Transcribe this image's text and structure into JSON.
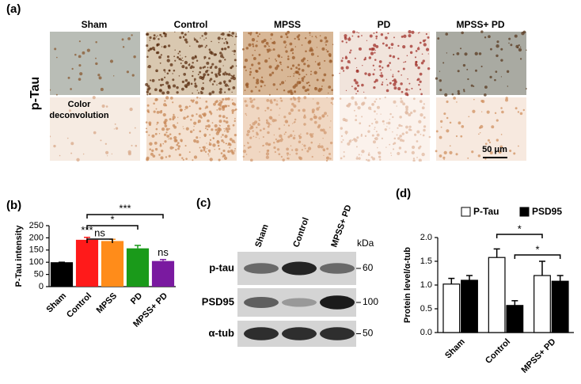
{
  "panel_a": {
    "label": "(a)",
    "columns": [
      "Sham",
      "Control",
      "MPSS",
      "PD",
      "MPSS+ PD"
    ],
    "row_label": "p-Tau",
    "overlay_lines": [
      "Color",
      "deconvolution"
    ],
    "scale_bar": "50 μm"
  },
  "panel_c": {
    "label": "(c)",
    "lanes": [
      "Sham",
      "Control",
      "MPSS+ PD"
    ],
    "unit": "kDa",
    "rows": [
      {
        "name": "p-tau",
        "kda": 60
      },
      {
        "name": "PSD95",
        "kda": 100
      },
      {
        "name": "α-tub",
        "kda": 50
      }
    ]
  },
  "chart_data": [
    {
      "type": "bar",
      "panel_label": "(b)",
      "ylabel": "P-Tau  intensity",
      "categories": [
        "Sham",
        "Control",
        "MPSS",
        "PD",
        "MPSS+ PD"
      ],
      "values": [
        100,
        192,
        187,
        157,
        105
      ],
      "errors": [
        0,
        10,
        7,
        12,
        6
      ],
      "colors": [
        "#000000",
        "#ff1a1a",
        "#ff8c1a",
        "#1a9a1a",
        "#7a1aa0"
      ],
      "bar_annotations": [
        null,
        "***",
        null,
        null,
        "ns"
      ],
      "brackets": [
        "ns",
        "*",
        "***"
      ],
      "ylim": [
        0,
        250
      ],
      "yticks": [
        0,
        50,
        100,
        150,
        200,
        250
      ],
      "grid": false
    },
    {
      "type": "bar",
      "panel_label": "(d)",
      "ylabel": "Protein level/α-tub",
      "categories": [
        "Sham",
        "Control",
        "MPSS+ PD"
      ],
      "series": [
        {
          "name": "P-Tau",
          "color": "#ffffff",
          "values": [
            1.02,
            1.58,
            1.2
          ],
          "errors": [
            0.12,
            0.18,
            0.3
          ]
        },
        {
          "name": "PSD95",
          "color": "#000000",
          "values": [
            1.1,
            0.57,
            1.08
          ],
          "errors": [
            0.1,
            0.1,
            0.12
          ]
        }
      ],
      "brackets": [
        "*",
        "*"
      ],
      "ylim": [
        0,
        2.0
      ],
      "yticks": [
        {
          "value": 0,
          "label": "0.0"
        },
        0.5,
        {
          "value": 1,
          "label": "1.0"
        },
        1.5,
        {
          "value": 2,
          "label": "2.0"
        }
      ],
      "grid": false,
      "legend": "top"
    }
  ]
}
